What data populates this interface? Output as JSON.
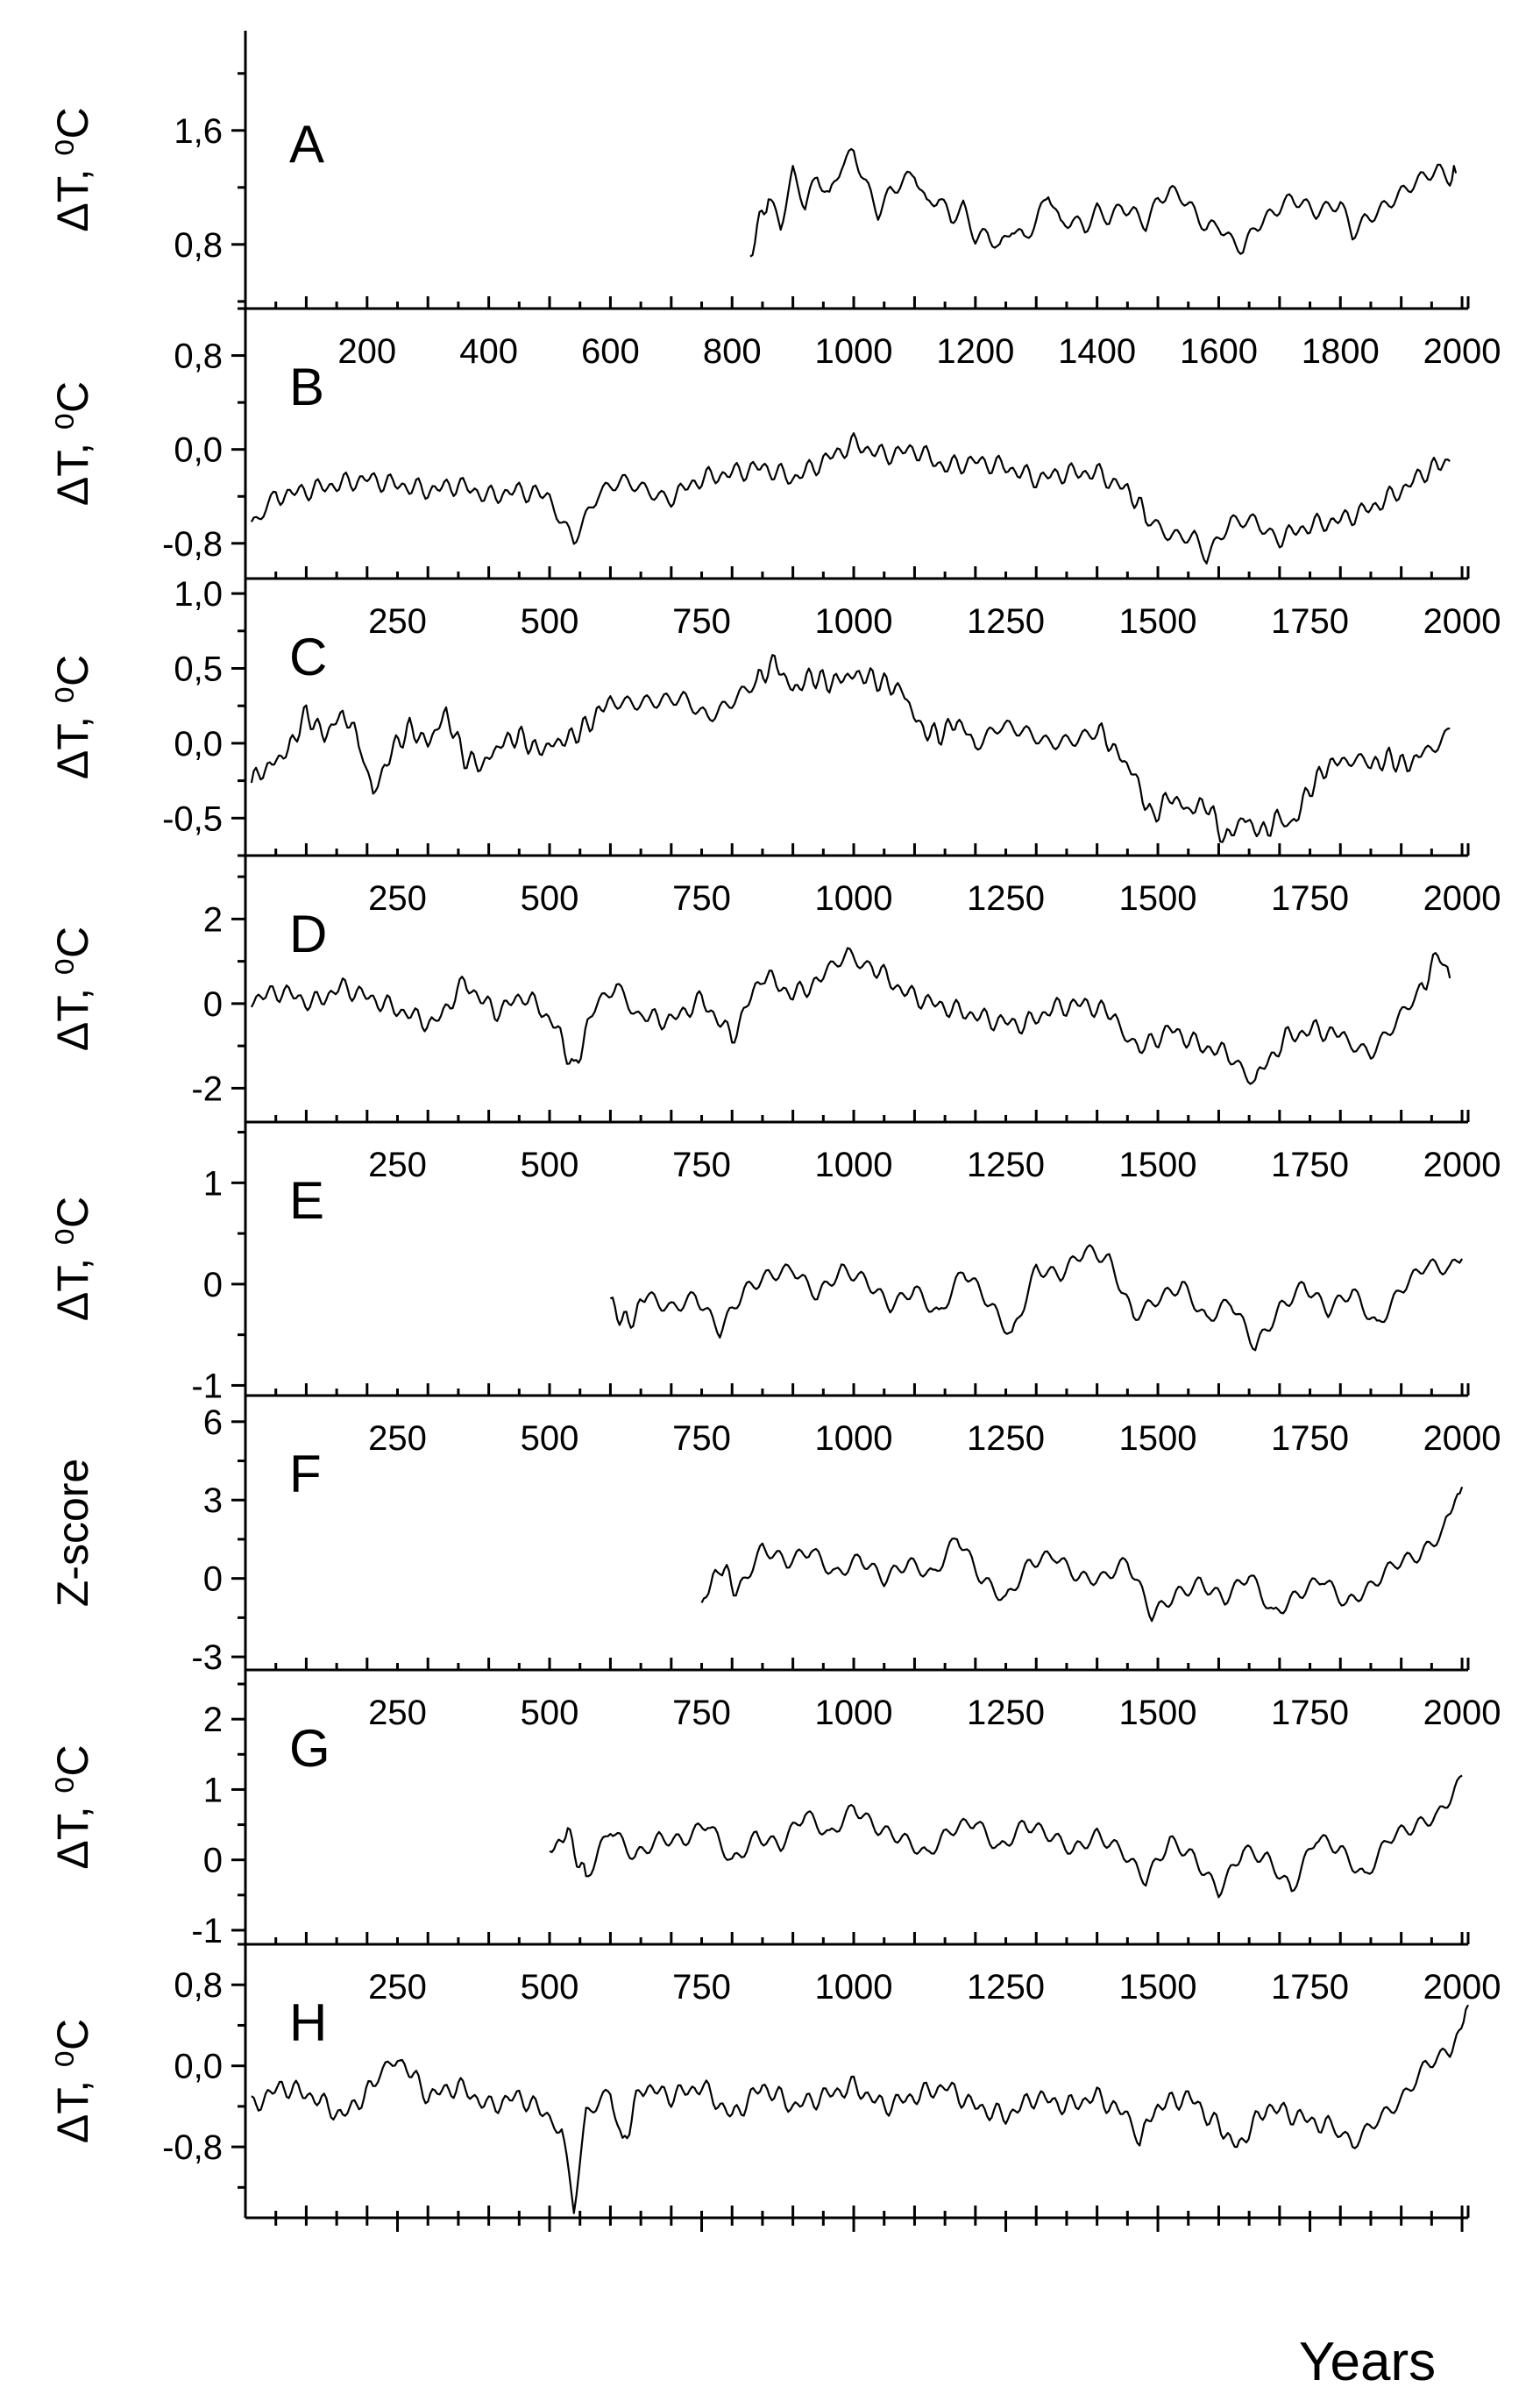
{
  "figure": {
    "xlabel": "Years",
    "colors": {
      "line": "#000000",
      "background": "#ffffff"
    }
  },
  "chart_data": [
    {
      "type": "line",
      "panel_label": "A",
      "ylabel": "ΔT, ⁰C",
      "ylim": [
        0.35,
        2.3
      ],
      "yticks": [
        0.8,
        1.6
      ],
      "ytick_labels": [
        "0,8",
        "1,6"
      ],
      "xlim": [
        0,
        2010
      ],
      "xticks": [],
      "xtick_labels": [],
      "series": [
        {
          "x": [
            830,
            860,
            880,
            900,
            920,
            940,
            960,
            980,
            1000,
            1020,
            1040,
            1060,
            1080,
            1100,
            1120,
            1140,
            1160,
            1180,
            1200,
            1220,
            1240,
            1260,
            1280,
            1300,
            1320,
            1340,
            1360,
            1380,
            1400,
            1420,
            1440,
            1460,
            1480,
            1500,
            1520,
            1540,
            1560,
            1580,
            1600,
            1620,
            1640,
            1660,
            1680,
            1700,
            1720,
            1740,
            1760,
            1780,
            1800,
            1820,
            1840,
            1860,
            1880,
            1900,
            1920,
            1940,
            1960,
            1980,
            1990
          ],
          "y": [
            0.75,
            1.15,
            0.95,
            1.3,
            1.05,
            1.25,
            1.1,
            1.35,
            1.45,
            1.25,
            1.05,
            1.2,
            1.25,
            1.3,
            1.05,
            1.1,
            0.95,
            1.05,
            0.85,
            0.9,
            0.8,
            0.95,
            0.85,
            0.95,
            1.15,
            0.9,
            0.95,
            0.9,
            1.05,
            1.0,
            1.1,
            1.05,
            0.95,
            1.1,
            1.15,
            1.1,
            1.0,
            0.9,
            0.95,
            0.85,
            0.8,
            0.95,
            1.0,
            1.05,
            1.1,
            1.05,
            1.0,
            1.05,
            1.1,
            0.9,
            1.0,
            1.05,
            1.1,
            1.15,
            1.2,
            1.25,
            1.3,
            1.25,
            1.3
          ]
        }
      ]
    },
    {
      "type": "line",
      "panel_label": "B",
      "ylabel": "ΔT, ⁰C",
      "ylim": [
        -1.1,
        1.2
      ],
      "yticks": [
        -0.8,
        0.0,
        0.8
      ],
      "ytick_labels": [
        "-0,8",
        "0,0",
        "0,8"
      ],
      "xlim": [
        0,
        2010
      ],
      "xticks": [
        200,
        400,
        600,
        800,
        1000,
        1200,
        1400,
        1600,
        1800,
        2000
      ],
      "xtick_labels": [
        "200",
        "400",
        "600",
        "800",
        "1000",
        "1200",
        "1400",
        "1600",
        "1800",
        "2000"
      ],
      "series": [
        {
          "x": [
            10,
            50,
            100,
            150,
            200,
            250,
            300,
            350,
            400,
            450,
            500,
            540,
            580,
            620,
            660,
            700,
            750,
            800,
            850,
            900,
            950,
            1000,
            1050,
            1100,
            1150,
            1200,
            1250,
            1300,
            1350,
            1400,
            1450,
            1480,
            1520,
            1560,
            1580,
            1620,
            1660,
            1700,
            1750,
            1800,
            1850,
            1900,
            1950,
            1980
          ],
          "y": [
            -0.7,
            -0.4,
            -0.35,
            -0.3,
            -0.25,
            -0.3,
            -0.35,
            -0.3,
            -0.4,
            -0.35,
            -0.4,
            -0.75,
            -0.4,
            -0.3,
            -0.35,
            -0.4,
            -0.25,
            -0.2,
            -0.15,
            -0.25,
            -0.1,
            0.05,
            -0.05,
            0.0,
            -0.15,
            -0.1,
            -0.15,
            -0.25,
            -0.2,
            -0.2,
            -0.35,
            -0.55,
            -0.7,
            -0.75,
            -0.95,
            -0.65,
            -0.6,
            -0.75,
            -0.65,
            -0.6,
            -0.5,
            -0.35,
            -0.15,
            -0.1
          ]
        }
      ]
    },
    {
      "type": "line",
      "panel_label": "C",
      "ylabel": "ΔT, ⁰C",
      "ylim": [
        -0.75,
        1.1
      ],
      "yticks": [
        -0.5,
        0.0,
        0.5,
        1.0
      ],
      "ytick_labels": [
        "-0,5",
        "0,0",
        "0,5",
        "1,0"
      ],
      "xlim": [
        0,
        2010
      ],
      "xticks": [
        250,
        500,
        750,
        1000,
        1250,
        1500,
        1750,
        2000
      ],
      "xtick_labels": [
        "250",
        "500",
        "750",
        "1000",
        "1250",
        "1500",
        "1750",
        "2000"
      ],
      "series": [
        {
          "x": [
            10,
            40,
            70,
            100,
            130,
            160,
            190,
            210,
            240,
            270,
            300,
            330,
            360,
            390,
            420,
            450,
            480,
            510,
            540,
            570,
            600,
            640,
            680,
            720,
            760,
            800,
            840,
            870,
            900,
            930,
            960,
            990,
            1020,
            1050,
            1080,
            1110,
            1140,
            1170,
            1200,
            1240,
            1280,
            1320,
            1360,
            1400,
            1430,
            1460,
            1490,
            1520,
            1550,
            1580,
            1610,
            1640,
            1670,
            1700,
            1720,
            1750,
            1780,
            1810,
            1850,
            1880,
            1910,
            1940,
            1980
          ],
          "y": [
            -0.25,
            -0.15,
            -0.05,
            0.2,
            0.05,
            0.2,
            0.0,
            -0.35,
            -0.05,
            0.1,
            0.0,
            0.2,
            -0.1,
            -0.15,
            0.0,
            0.05,
            -0.05,
            0.0,
            0.05,
            0.15,
            0.3,
            0.25,
            0.25,
            0.3,
            0.2,
            0.3,
            0.4,
            0.55,
            0.35,
            0.45,
            0.4,
            0.45,
            0.45,
            0.4,
            0.35,
            0.1,
            0.05,
            0.15,
            0.0,
            0.1,
            0.05,
            0.0,
            0.05,
            0.1,
            -0.05,
            -0.2,
            -0.5,
            -0.35,
            -0.45,
            -0.4,
            -0.65,
            -0.5,
            -0.6,
            -0.5,
            -0.55,
            -0.3,
            -0.15,
            -0.1,
            -0.15,
            -0.1,
            -0.15,
            -0.05,
            0.1
          ]
        }
      ]
    },
    {
      "type": "line",
      "panel_label": "D",
      "ylabel": "ΔT, ⁰C",
      "ylim": [
        -2.8,
        3.5
      ],
      "yticks": [
        -2,
        0,
        2
      ],
      "ytick_labels": [
        "-2",
        "0",
        "2"
      ],
      "xlim": [
        0,
        2010
      ],
      "xticks": [
        250,
        500,
        750,
        1000,
        1250,
        1500,
        1750,
        2000
      ],
      "xtick_labels": [
        "250",
        "500",
        "750",
        "1000",
        "1250",
        "1500",
        "1750",
        "2000"
      ],
      "series": [
        {
          "x": [
            10,
            60,
            110,
            160,
            210,
            260,
            310,
            360,
            410,
            460,
            510,
            540,
            570,
            610,
            650,
            700,
            750,
            800,
            850,
            900,
            950,
            990,
            1030,
            1080,
            1130,
            1180,
            1230,
            1280,
            1330,
            1380,
            1430,
            1470,
            1520,
            1570,
            1620,
            1660,
            1710,
            1760,
            1810,
            1850,
            1890,
            1930,
            1960,
            1980
          ],
          "y": [
            0.1,
            0.3,
            0.0,
            0.4,
            0.1,
            -0.2,
            -0.5,
            0.5,
            -0.2,
            0.2,
            -0.5,
            -1.6,
            -0.2,
            0.5,
            -0.3,
            -0.4,
            0.1,
            -0.8,
            0.7,
            0.2,
            0.6,
            1.2,
            0.9,
            0.3,
            0.0,
            -0.2,
            -0.4,
            -0.5,
            -0.1,
            0.0,
            -0.3,
            -1.1,
            -0.6,
            -1.0,
            -1.2,
            -1.8,
            -0.8,
            -0.6,
            -0.8,
            -1.1,
            -0.5,
            0.2,
            1.2,
            0.6
          ]
        }
      ]
    },
    {
      "type": "line",
      "panel_label": "E",
      "ylabel": "ΔT, ⁰C",
      "ylim": [
        -1.1,
        1.6
      ],
      "yticks": [
        -1,
        0,
        1
      ],
      "ytick_labels": [
        "-1",
        "0",
        "1"
      ],
      "xlim": [
        0,
        2010
      ],
      "xticks": [
        250,
        500,
        750,
        1000,
        1250,
        1500,
        1750,
        2000
      ],
      "xtick_labels": [
        "250",
        "500",
        "750",
        "1000",
        "1250",
        "1500",
        "1750",
        "2000"
      ],
      "series": [
        {
          "x": [
            600,
            630,
            660,
            700,
            740,
            780,
            820,
            860,
            900,
            940,
            980,
            1020,
            1060,
            1100,
            1140,
            1180,
            1220,
            1260,
            1300,
            1340,
            1380,
            1420,
            1460,
            1500,
            1540,
            1580,
            1620,
            1660,
            1700,
            1740,
            1780,
            1820,
            1860,
            1900,
            1940,
            1980,
            2000
          ],
          "y": [
            -0.2,
            -0.4,
            -0.1,
            -0.2,
            -0.1,
            -0.5,
            -0.1,
            0.1,
            0.2,
            -0.1,
            0.1,
            0.0,
            -0.2,
            0.0,
            -0.3,
            0.1,
            -0.2,
            -0.5,
            0.2,
            0.1,
            0.3,
            0.2,
            -0.3,
            -0.1,
            0.0,
            -0.4,
            -0.2,
            -0.6,
            -0.2,
            0.0,
            -0.3,
            -0.1,
            -0.4,
            0.0,
            0.2,
            0.1,
            0.25
          ]
        }
      ]
    },
    {
      "type": "line",
      "panel_label": "F",
      "ylabel": "Z-score",
      "ylim": [
        -3.5,
        7.0
      ],
      "yticks": [
        -3,
        0,
        3,
        6
      ],
      "ytick_labels": [
        "-3",
        "0",
        "3",
        "6"
      ],
      "xlim": [
        0,
        2010
      ],
      "xticks": [
        250,
        500,
        750,
        1000,
        1250,
        1500,
        1750,
        2000
      ],
      "xtick_labels": [
        "250",
        "500",
        "750",
        "1000",
        "1250",
        "1500",
        "1750",
        "2000"
      ],
      "series": [
        {
          "x": [
            750,
            780,
            810,
            850,
            890,
            930,
            970,
            1010,
            1050,
            1090,
            1130,
            1170,
            1210,
            1250,
            1290,
            1330,
            1370,
            1410,
            1450,
            1490,
            1530,
            1570,
            1610,
            1650,
            1690,
            1730,
            1770,
            1810,
            1850,
            1890,
            1930,
            1970,
            2000
          ],
          "y": [
            -1.0,
            0.5,
            -0.5,
            1.0,
            0.5,
            1.2,
            0.3,
            0.8,
            -0.2,
            0.5,
            0.2,
            1.8,
            0.0,
            -1.0,
            0.5,
            1.0,
            0.2,
            0.0,
            0.5,
            -1.5,
            -0.5,
            0.0,
            -0.8,
            0.0,
            -1.5,
            -0.5,
            0.2,
            -1.0,
            -0.5,
            0.5,
            1.0,
            2.0,
            3.5
          ]
        }
      ]
    },
    {
      "type": "line",
      "panel_label": "G",
      "ylabel": "ΔT, ⁰C",
      "ylim": [
        -1.2,
        2.7
      ],
      "yticks": [
        -1,
        0,
        1,
        2
      ],
      "ytick_labels": [
        "-1",
        "0",
        "1",
        "2"
      ],
      "xlim": [
        0,
        2010
      ],
      "xticks": [
        250,
        500,
        750,
        1000,
        1250,
        1500,
        1750,
        2000
      ],
      "xtick_labels": [
        "250",
        "500",
        "750",
        "1000",
        "1250",
        "1500",
        "1750",
        "2000"
      ],
      "series": [
        {
          "x": [
            500,
            530,
            560,
            600,
            640,
            680,
            720,
            760,
            800,
            840,
            880,
            920,
            960,
            1000,
            1040,
            1080,
            1120,
            1160,
            1200,
            1240,
            1280,
            1320,
            1360,
            1400,
            1440,
            1480,
            1520,
            1560,
            1600,
            1640,
            1680,
            1720,
            1760,
            1800,
            1840,
            1880,
            1920,
            1960,
            2000
          ],
          "y": [
            0.1,
            0.4,
            -0.3,
            0.5,
            0.1,
            0.3,
            0.2,
            0.5,
            0.0,
            0.4,
            0.2,
            0.6,
            0.3,
            0.8,
            0.5,
            0.3,
            0.0,
            0.4,
            0.6,
            0.2,
            0.5,
            0.3,
            0.1,
            0.4,
            0.2,
            -0.3,
            0.2,
            0.0,
            -0.4,
            0.2,
            0.0,
            -0.5,
            0.3,
            0.2,
            -0.2,
            0.3,
            0.4,
            0.6,
            1.2
          ]
        }
      ]
    },
    {
      "type": "line",
      "panel_label": "H",
      "ylabel": "ΔT, ⁰C",
      "ylim": [
        -1.5,
        1.2
      ],
      "yticks": [
        -0.8,
        0.0,
        0.8
      ],
      "ytick_labels": [
        "-0,8",
        "0,0",
        "0,8"
      ],
      "xlim": [
        0,
        2010
      ],
      "xticks": [
        250,
        500,
        750,
        1000,
        1250,
        1500,
        1750,
        2000
      ],
      "xtick_labels": [
        "250",
        "500",
        "750",
        "1000",
        "1250",
        "1500",
        "1750",
        "2000"
      ],
      "series": [
        {
          "x": [
            10,
            60,
            110,
            160,
            210,
            250,
            300,
            350,
            400,
            450,
            500,
            520,
            540,
            560,
            600,
            620,
            650,
            700,
            750,
            800,
            850,
            900,
            950,
            1000,
            1050,
            1100,
            1150,
            1200,
            1250,
            1300,
            1350,
            1400,
            1450,
            1470,
            1500,
            1550,
            1600,
            1630,
            1680,
            1730,
            1780,
            1820,
            1860,
            1900,
            1940,
            1980,
            2010
          ],
          "y": [
            -0.4,
            -0.2,
            -0.3,
            -0.5,
            -0.2,
            0.1,
            -0.3,
            -0.2,
            -0.4,
            -0.3,
            -0.5,
            -0.6,
            -1.4,
            -0.5,
            -0.3,
            -0.8,
            -0.2,
            -0.3,
            -0.2,
            -0.5,
            -0.2,
            -0.4,
            -0.3,
            -0.2,
            -0.4,
            -0.3,
            -0.2,
            -0.4,
            -0.5,
            -0.3,
            -0.4,
            -0.3,
            -0.5,
            -0.7,
            -0.4,
            -0.3,
            -0.6,
            -0.8,
            -0.4,
            -0.5,
            -0.6,
            -0.8,
            -0.5,
            -0.3,
            0.0,
            0.1,
            0.6
          ]
        }
      ]
    }
  ]
}
